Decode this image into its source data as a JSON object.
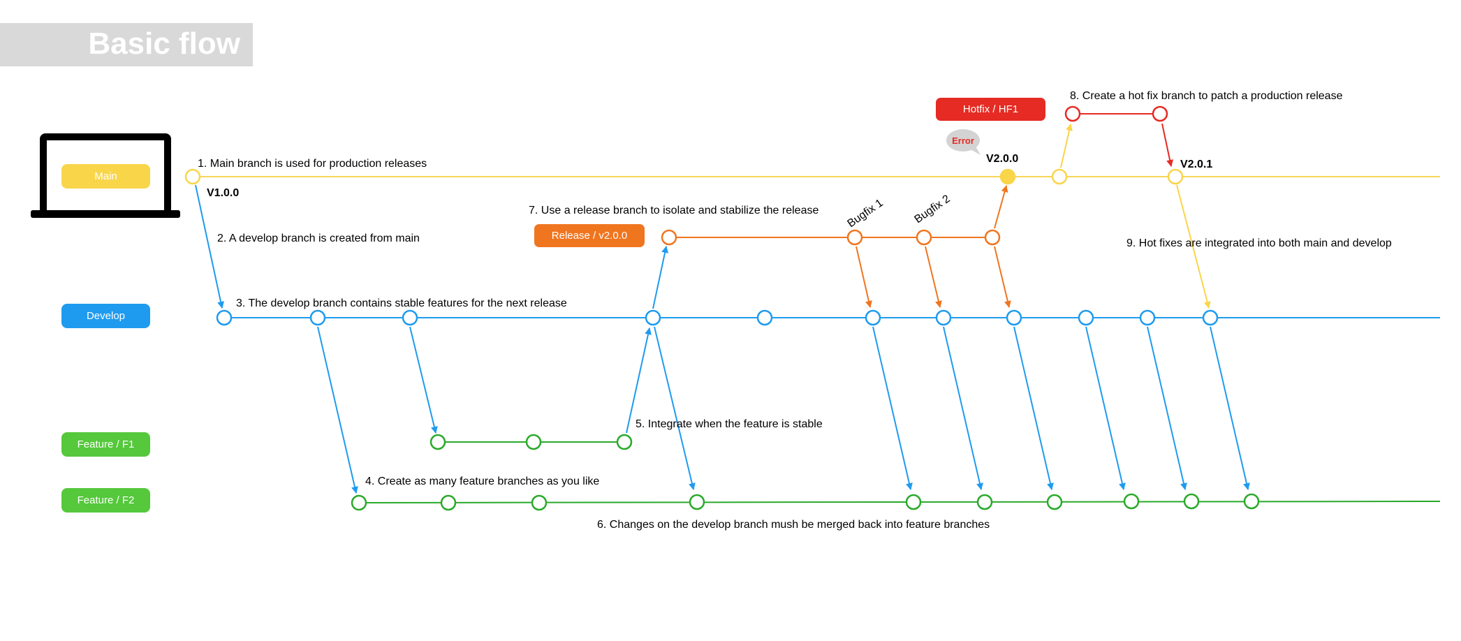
{
  "page": {
    "title": "Basic flow"
  },
  "colors": {
    "main": "#f9d54a",
    "main_line": "#f7d55a",
    "develop": "#1e9bef",
    "feature": "#55c83c",
    "feature_line": "#2aa92a",
    "release": "#f0751f",
    "hotfix": "#e52b23",
    "error_bubble": "#d3d3d3",
    "error_text": "#e52b23",
    "laptop": "#000000",
    "title_band": "#d9d9d9"
  },
  "branches": {
    "main": "Main",
    "develop": "Develop",
    "feature_f1": "Feature / F1",
    "feature_f2": "Feature / F2",
    "release": "Release / v2.0.0",
    "hotfix": "Hotfix / HF1"
  },
  "versions": {
    "v1": "V1.0.0",
    "v2": "V2.0.0",
    "v201": "V2.0.1"
  },
  "error_label": "Error",
  "bugfix_labels": [
    "Bugfix 1",
    "Bugfix 2"
  ],
  "steps": [
    "1. Main branch is used for production releases",
    "2. A develop branch is created from main",
    "3. The develop branch contains stable features for the next release",
    "4. Create as many feature branches as you like",
    "5. Integrate when the feature is stable",
    "6. Changes on the develop branch mush be merged back into feature branches",
    "7. Use a release branch to isolate and stabilize the release",
    "8. Create a hot fix branch to patch a production release",
    "9. Hot fixes are integrated into both main and develop"
  ]
}
